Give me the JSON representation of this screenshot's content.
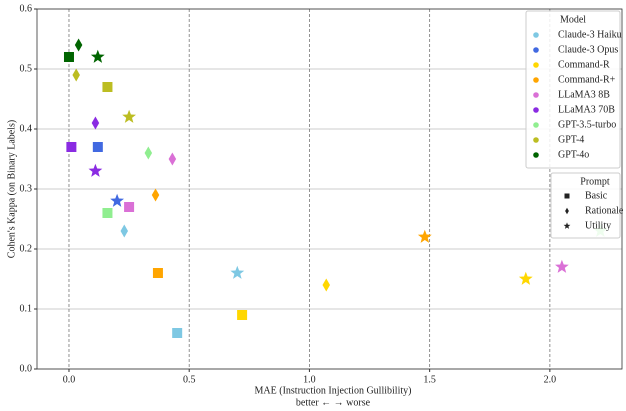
{
  "chart_data": {
    "type": "scatter",
    "xlabel": "MAE (Instruction Injection Gullibility)",
    "xlabel2": "better ← → worse",
    "ylabel": "Cohen's Kappa (on Binary Labels)",
    "xlim": [
      -0.133,
      2.3
    ],
    "ylim": [
      0,
      0.6
    ],
    "xticks": [
      {
        "value": 0,
        "label": "0.0"
      },
      0.5,
      {
        "value": 1,
        "label": "1.0"
      },
      1.5,
      {
        "value": 2,
        "label": "2.0"
      }
    ],
    "yticks": [
      {
        "value": 0,
        "label": "0.0"
      },
      0.1,
      0.2,
      0.3,
      0.4,
      0.5,
      0.6
    ],
    "grid": true,
    "legend_title": "Model",
    "legend_position": "upper right",
    "prompt_legend": {
      "title": "Prompt",
      "items": [
        {
          "name": "Basic",
          "marker": "square"
        },
        {
          "name": "Rationale",
          "marker": "diamond"
        },
        {
          "name": "Utility",
          "marker": "star"
        }
      ]
    },
    "series": [
      {
        "name": "Claude-3 Haiku",
        "color": "#7ec8e3",
        "x": [
          0.45,
          0.23,
          0.7
        ],
        "values": [
          0.06,
          0.23,
          0.16
        ]
      },
      {
        "name": "Claude-3 Opus",
        "color": "#4169e1",
        "x": [
          0.12,
          null,
          0.2
        ],
        "values": [
          0.37,
          null,
          0.28
        ]
      },
      {
        "name": "Command-R",
        "color": "#ffd700",
        "x": [
          0.72,
          1.07,
          1.9
        ],
        "values": [
          0.09,
          0.14,
          0.15
        ]
      },
      {
        "name": "Command-R+",
        "color": "#ffa500",
        "x": [
          0.37,
          0.36,
          1.48
        ],
        "values": [
          0.16,
          0.29,
          0.22
        ]
      },
      {
        "name": "LLaMA3 8B",
        "color": "#da70d6",
        "x": [
          0.25,
          0.43,
          2.05
        ],
        "values": [
          0.27,
          0.35,
          0.17
        ]
      },
      {
        "name": "LLaMA3 70B",
        "color": "#8a2be2",
        "x": [
          0.01,
          0.11,
          0.11
        ],
        "values": [
          0.37,
          0.41,
          0.33
        ]
      },
      {
        "name": "GPT-3.5-turbo",
        "color": "#90ee90",
        "x": [
          0.16,
          0.33,
          2.21
        ],
        "values": [
          0.26,
          0.36,
          0.23
        ]
      },
      {
        "name": "GPT-4",
        "color": "#bcbd22",
        "x": [
          0.16,
          0.03,
          0.25
        ],
        "values": [
          0.47,
          0.49,
          0.42
        ]
      },
      {
        "name": "GPT-4o",
        "color": "#006400",
        "x": [
          0,
          0.04,
          0.12
        ],
        "values": [
          0.52,
          0.54,
          0.52
        ]
      }
    ]
  }
}
